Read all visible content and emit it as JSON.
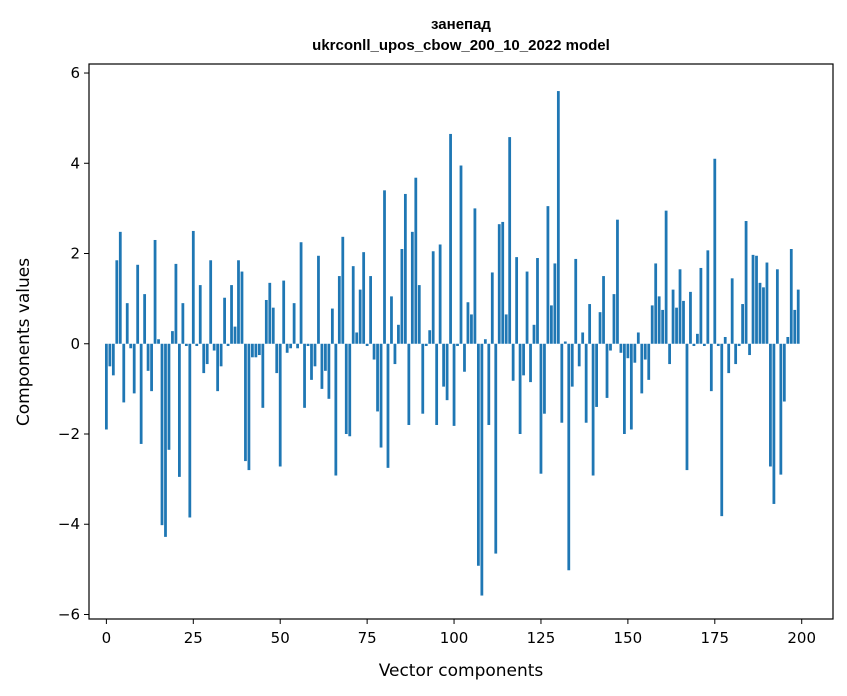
{
  "chart_data": {
    "type": "bar",
    "title": "занепад",
    "subtitle": "ukrconll_upos_cbow_200_10_2022 model",
    "xlabel": "Vector components",
    "ylabel": "Components values",
    "xlim": [
      -5,
      209
    ],
    "ylim": [
      -6.1,
      6.2
    ],
    "xticks": [
      0,
      25,
      50,
      75,
      100,
      125,
      150,
      175,
      200
    ],
    "yticks": [
      -6,
      -4,
      -2,
      0,
      2,
      4,
      6
    ],
    "xtick_labels": [
      "0",
      "25",
      "50",
      "75",
      "100",
      "125",
      "150",
      "175",
      "200"
    ],
    "ytick_labels": [
      "−6",
      "−4",
      "−2",
      "0",
      "2",
      "4",
      "6"
    ],
    "grid": false,
    "bar_color": "#1f77b4",
    "x": [
      0,
      1,
      2,
      3,
      4,
      5,
      6,
      7,
      8,
      9,
      10,
      11,
      12,
      13,
      14,
      15,
      16,
      17,
      18,
      19,
      20,
      21,
      22,
      23,
      24,
      25,
      26,
      27,
      28,
      29,
      30,
      31,
      32,
      33,
      34,
      35,
      36,
      37,
      38,
      39,
      40,
      41,
      42,
      43,
      44,
      45,
      46,
      47,
      48,
      49,
      50,
      51,
      52,
      53,
      54,
      55,
      56,
      57,
      58,
      59,
      60,
      61,
      62,
      63,
      64,
      65,
      66,
      67,
      68,
      69,
      70,
      71,
      72,
      73,
      74,
      75,
      76,
      77,
      78,
      79,
      80,
      81,
      82,
      83,
      84,
      85,
      86,
      87,
      88,
      89,
      90,
      91,
      92,
      93,
      94,
      95,
      96,
      97,
      98,
      99,
      100,
      101,
      102,
      103,
      104,
      105,
      106,
      107,
      108,
      109,
      110,
      111,
      112,
      113,
      114,
      115,
      116,
      117,
      118,
      119,
      120,
      121,
      122,
      123,
      124,
      125,
      126,
      127,
      128,
      129,
      130,
      131,
      132,
      133,
      134,
      135,
      136,
      137,
      138,
      139,
      140,
      141,
      142,
      143,
      144,
      145,
      146,
      147,
      148,
      149,
      150,
      151,
      152,
      153,
      154,
      155,
      156,
      157,
      158,
      159,
      160,
      161,
      162,
      163,
      164,
      165,
      166,
      167,
      168,
      169,
      170,
      171,
      172,
      173,
      174,
      175,
      176,
      177,
      178,
      179,
      180,
      181,
      182,
      183,
      184,
      185,
      186,
      187,
      188,
      189,
      190,
      191,
      192,
      193,
      194,
      195,
      196,
      197,
      198,
      199
    ],
    "values": [
      -1.9,
      -0.5,
      -0.7,
      1.85,
      2.48,
      -1.3,
      0.9,
      -0.1,
      -1.1,
      1.75,
      -2.22,
      1.1,
      -0.6,
      -1.05,
      2.3,
      0.1,
      -4.02,
      -4.28,
      -2.35,
      0.28,
      1.77,
      -2.95,
      0.9,
      -0.05,
      -3.85,
      2.5,
      -0.05,
      1.3,
      -0.65,
      -0.45,
      1.85,
      -0.15,
      -1.05,
      -0.5,
      1.02,
      -0.05,
      1.3,
      0.38,
      1.85,
      1.6,
      -2.6,
      -2.8,
      -0.3,
      -0.3,
      -0.25,
      -1.42,
      0.97,
      1.35,
      0.8,
      -0.65,
      -2.72,
      1.4,
      -0.2,
      -0.1,
      0.9,
      -0.1,
      2.25,
      -1.42,
      -0.05,
      -0.8,
      -0.5,
      1.95,
      -1.0,
      -0.6,
      -1.22,
      0.78,
      -2.92,
      1.5,
      2.37,
      -2.0,
      -2.05,
      1.72,
      0.25,
      1.2,
      2.03,
      -0.05,
      1.5,
      -0.35,
      -1.5,
      -2.3,
      3.4,
      -2.75,
      1.05,
      -0.45,
      0.42,
      2.1,
      3.32,
      -1.8,
      2.48,
      3.68,
      1.3,
      -1.55,
      -0.05,
      0.3,
      2.05,
      -1.8,
      2.2,
      -0.95,
      -1.25,
      4.65,
      -1.82,
      -0.05,
      3.95,
      -0.62,
      0.92,
      0.65,
      3.0,
      -4.92,
      -5.58,
      0.1,
      -1.8,
      1.58,
      -4.65,
      2.65,
      2.7,
      0.65,
      4.58,
      -0.82,
      1.92,
      -2.0,
      -0.7,
      1.6,
      -0.85,
      0.42,
      1.9,
      -2.88,
      -1.55,
      3.05,
      0.85,
      1.78,
      5.6,
      -1.75,
      0.05,
      -5.02,
      -0.95,
      1.88,
      -0.5,
      0.25,
      -1.75,
      0.88,
      -2.92,
      -1.4,
      0.7,
      1.5,
      -1.2,
      -0.15,
      1.1,
      2.75,
      -0.2,
      -2.0,
      -0.32,
      -1.9,
      -0.42,
      0.25,
      -1.1,
      -0.35,
      -0.8,
      0.85,
      1.78,
      1.05,
      0.75,
      2.95,
      -0.45,
      1.2,
      0.8,
      1.65,
      0.95,
      -2.8,
      1.15,
      -0.05,
      0.22,
      1.68,
      -0.05,
      2.07,
      -1.05,
      4.1,
      -0.05,
      -3.82,
      0.15,
      -0.65,
      1.45,
      -0.45,
      -0.05,
      0.88,
      2.72,
      -0.25,
      1.97,
      1.95,
      1.35,
      1.25,
      1.8,
      -2.72,
      -3.55,
      1.65,
      -2.9,
      -1.28,
      0.15,
      2.1,
      0.75,
      1.2
    ]
  }
}
